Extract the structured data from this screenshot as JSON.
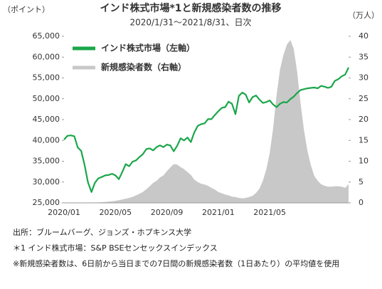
{
  "chart_data": {
    "type": "line",
    "title": "インド株式市場*1と新規感染者数の推移",
    "subtitle": "2020/1/31～2021/8/31、日次",
    "y_label": "（ポイント）",
    "y2_label": "（万人）",
    "categories": [
      "2020/01",
      null,
      null,
      null,
      null,
      null,
      null,
      null,
      null,
      null,
      null,
      null,
      null,
      null,
      null,
      "2020/05",
      null,
      null,
      null,
      null,
      null,
      null,
      null,
      null,
      null,
      null,
      null,
      null,
      null,
      null,
      "2020/09",
      null,
      null,
      null,
      null,
      null,
      null,
      null,
      null,
      null,
      null,
      null,
      null,
      null,
      null,
      "2021/01",
      null,
      null,
      null,
      null,
      null,
      null,
      null,
      null,
      null,
      null,
      null,
      null,
      null,
      null,
      "2021/05",
      null,
      null,
      null,
      null,
      null,
      null,
      null,
      null,
      null,
      null,
      null,
      null,
      null,
      null,
      null,
      null,
      null,
      null,
      null,
      null,
      null,
      null,
      null
    ],
    "series": [
      {
        "name": "インド株式市場（左軸）",
        "color": "#1aa64a",
        "values": [
          40200,
          41100,
          41200,
          41000,
          38300,
          37500,
          34100,
          29900,
          27600,
          29800,
          30900,
          31200,
          31600,
          31700,
          32000,
          31600,
          30700,
          32400,
          34300,
          33800,
          34900,
          35200,
          36000,
          36700,
          37900,
          38100,
          37600,
          38400,
          38800,
          38400,
          39000,
          38800,
          37400,
          38700,
          40500,
          40000,
          40700,
          39600,
          41900,
          43500,
          43900,
          44100,
          45100,
          45100,
          46100,
          47000,
          47800,
          48000,
          49300,
          48800,
          46300,
          50700,
          51500,
          51000,
          49100,
          50400,
          50800,
          49800,
          49000,
          49200,
          49600,
          48600,
          48000,
          48800,
          49200,
          49100,
          49900,
          50500,
          51400,
          52100,
          52300,
          52500,
          52600,
          52700,
          52500,
          53100,
          52900,
          52600,
          52900,
          54300,
          54700,
          55400,
          55800,
          57500
        ]
      },
      {
        "name": "新規感染者数（右軸）",
        "color": "#c8c8c8",
        "axis": "y2",
        "values": [
          0,
          0,
          0,
          0,
          0,
          0,
          0,
          0.02,
          0.05,
          0.1,
          0.1,
          0.15,
          0.2,
          0.3,
          0.4,
          0.5,
          0.65,
          0.8,
          1.0,
          1.2,
          1.45,
          1.8,
          2.2,
          2.6,
          3.3,
          4.0,
          4.8,
          5.3,
          6.1,
          6.6,
          7.6,
          8.5,
          9.3,
          9.2,
          8.6,
          8.1,
          7.4,
          6.7,
          5.6,
          5.0,
          4.6,
          4.4,
          4.1,
          3.6,
          3.2,
          2.6,
          2.3,
          2.0,
          1.8,
          1.5,
          1.4,
          1.2,
          1.1,
          1.2,
          1.4,
          1.7,
          2.4,
          3.4,
          5.3,
          8.0,
          12.0,
          18.0,
          25.9,
          32.0,
          35.5,
          38.0,
          39.1,
          37.0,
          31.5,
          24.0,
          17.5,
          12.5,
          9.0,
          6.5,
          5.3,
          4.5,
          4.1,
          3.9,
          3.9,
          4.0,
          4.0,
          3.9,
          3.6,
          4.5
        ]
      }
    ],
    "ylim": [
      25000,
      65000
    ],
    "yticks": [
      {
        "value": 25000,
        "label": "25,000"
      },
      {
        "value": 30000,
        "label": "30,000"
      },
      {
        "value": 35000,
        "label": "35,000"
      },
      {
        "value": 40000,
        "label": "40,000"
      },
      {
        "value": 45000,
        "label": "45,000"
      },
      {
        "value": 50000,
        "label": "50,000"
      },
      {
        "value": 55000,
        "label": "55,000"
      },
      {
        "value": 60000,
        "label": "60,000"
      },
      {
        "value": 65000,
        "label": "65,000"
      }
    ],
    "y2lim": [
      0,
      40
    ],
    "y2ticks": [
      0,
      5,
      10,
      15,
      20,
      25,
      30,
      35,
      40
    ],
    "grid": false,
    "legend": "top-left"
  },
  "notes": [
    "出所：ブルームバーグ、ジョンズ・ホプキンス大学",
    "＊1 インド株式市場：S&P BSEセンセックスインデックス",
    "※新規感染者数は、6日前から当日までの7日間の新規感染者数（1日あたり）の平均値を使用"
  ]
}
